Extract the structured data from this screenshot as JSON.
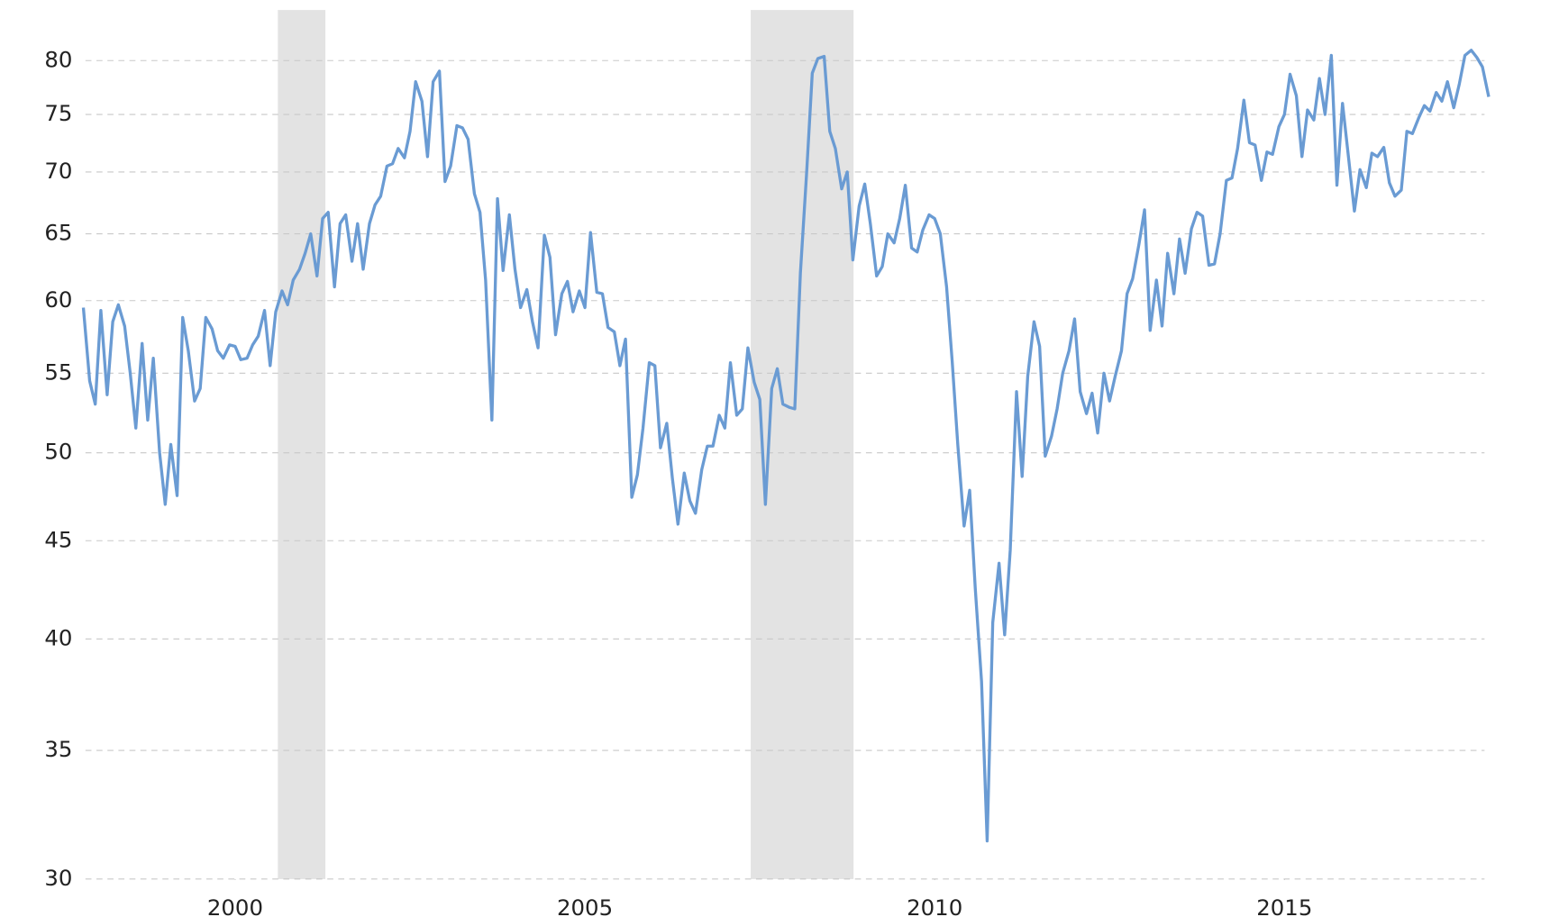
{
  "chart_data": {
    "type": "line",
    "y_scale": "log",
    "grid": true,
    "xlim": [
      1997.86,
      2017.86
    ],
    "xticks": [
      2000,
      2005,
      2010,
      2015
    ],
    "ylim": [
      30,
      85
    ],
    "yticks": [
      30,
      35,
      40,
      45,
      50,
      55,
      60,
      65,
      70,
      75,
      80
    ],
    "shaded_regions": [
      [
        2000.61,
        2001.29
      ],
      [
        2007.37,
        2008.84
      ]
    ],
    "shade_color": "#e3e3e3",
    "x": [
      1997.83,
      1997.92,
      1998.0,
      1998.08,
      1998.17,
      1998.25,
      1998.33,
      1998.42,
      1998.5,
      1998.58,
      1998.67,
      1998.75,
      1998.83,
      1998.92,
      1999.0,
      1999.08,
      1999.17,
      1999.25,
      1999.33,
      1999.42,
      1999.5,
      1999.58,
      1999.67,
      1999.75,
      1999.83,
      1999.92,
      2000.0,
      2000.08,
      2000.17,
      2000.25,
      2000.33,
      2000.42,
      2000.5,
      2000.58,
      2000.67,
      2000.75,
      2000.83,
      2000.92,
      2001.0,
      2001.08,
      2001.17,
      2001.25,
      2001.33,
      2001.42,
      2001.5,
      2001.58,
      2001.67,
      2001.75,
      2001.83,
      2001.92,
      2002.0,
      2002.08,
      2002.17,
      2002.25,
      2002.33,
      2002.42,
      2002.5,
      2002.58,
      2002.67,
      2002.75,
      2002.83,
      2002.92,
      2003.0,
      2003.08,
      2003.17,
      2003.25,
      2003.33,
      2003.42,
      2003.5,
      2003.58,
      2003.67,
      2003.75,
      2003.83,
      2003.92,
      2004.0,
      2004.08,
      2004.17,
      2004.25,
      2004.33,
      2004.42,
      2004.5,
      2004.58,
      2004.67,
      2004.75,
      2004.83,
      2004.92,
      2005.0,
      2005.08,
      2005.17,
      2005.25,
      2005.33,
      2005.42,
      2005.5,
      2005.58,
      2005.67,
      2005.75,
      2005.83,
      2005.92,
      2006.0,
      2006.08,
      2006.17,
      2006.25,
      2006.33,
      2006.42,
      2006.5,
      2006.58,
      2006.67,
      2006.75,
      2006.83,
      2006.92,
      2007.0,
      2007.08,
      2007.17,
      2007.25,
      2007.33,
      2007.42,
      2007.5,
      2007.58,
      2007.67,
      2007.75,
      2007.83,
      2007.92,
      2008.0,
      2008.08,
      2008.17,
      2008.25,
      2008.33,
      2008.42,
      2008.5,
      2008.58,
      2008.67,
      2008.75,
      2008.83,
      2008.92,
      2009.0,
      2009.08,
      2009.17,
      2009.25,
      2009.33,
      2009.42,
      2009.5,
      2009.58,
      2009.67,
      2009.75,
      2009.83,
      2009.92,
      2010.0,
      2010.08,
      2010.17,
      2010.25,
      2010.33,
      2010.42,
      2010.5,
      2010.58,
      2010.67,
      2010.75,
      2010.83,
      2010.92,
      2011.0,
      2011.08,
      2011.17,
      2011.25,
      2011.33,
      2011.42,
      2011.5,
      2011.58,
      2011.67,
      2011.75,
      2011.83,
      2011.92,
      2012.0,
      2012.08,
      2012.17,
      2012.25,
      2012.33,
      2012.42,
      2012.5,
      2012.58,
      2012.67,
      2012.75,
      2012.83,
      2012.92,
      2013.0,
      2013.08,
      2013.17,
      2013.25,
      2013.33,
      2013.42,
      2013.5,
      2013.58,
      2013.67,
      2013.75,
      2013.83,
      2013.92,
      2014.0,
      2014.08,
      2014.17,
      2014.25,
      2014.33,
      2014.42,
      2014.5,
      2014.58,
      2014.67,
      2014.75,
      2014.83,
      2014.92,
      2015.0,
      2015.08,
      2015.17,
      2015.25,
      2015.33,
      2015.42,
      2015.5,
      2015.58,
      2015.67,
      2015.75,
      2015.83,
      2015.92,
      2016.0,
      2016.08,
      2016.17,
      2016.25,
      2016.33,
      2016.42,
      2016.5,
      2016.58,
      2016.67,
      2016.75,
      2016.83,
      2016.92,
      2017.0,
      2017.08,
      2017.17,
      2017.25,
      2017.33,
      2017.42,
      2017.5,
      2017.58,
      2017.67,
      2017.75,
      2017.83,
      2017.92
    ],
    "series": [
      {
        "color": "#6a9bd3",
        "values": [
          59.5,
          54.5,
          53.0,
          59.3,
          53.6,
          58.5,
          59.7,
          58.2,
          55,
          51.5,
          57,
          52,
          56,
          50,
          47,
          50.5,
          47.5,
          58.8,
          56.5,
          53.2,
          54,
          58.8,
          58,
          56.5,
          56,
          56.9,
          56.8,
          55.9,
          56,
          56.9,
          57.5,
          59.3,
          55.5,
          59.2,
          60.7,
          59.7,
          61.5,
          62.3,
          63.5,
          65.0,
          61.8,
          66.2,
          66.7,
          61.0,
          65.8,
          66.5,
          62.9,
          65.8,
          62.3,
          65.8,
          67.3,
          68.0,
          70.5,
          70.7,
          72.0,
          71.2,
          73.5,
          78.0,
          76.2,
          71.3,
          78.0,
          79.0,
          69.2,
          70.5,
          74.0,
          73.8,
          72.8,
          68.2,
          66.7,
          61.5,
          52.0,
          67.8,
          62.2,
          66.5,
          62.3,
          59.5,
          60.8,
          58.5,
          56.7,
          64.9,
          63.2,
          57.6,
          60.5,
          61.4,
          59.2,
          60.7,
          59.5,
          65.1,
          60.6,
          60.5,
          58.1,
          57.8,
          55.5,
          57.3,
          47.4,
          48.7,
          51.5,
          55.7,
          55.5,
          50.3,
          51.8,
          48.5,
          45.9,
          48.8,
          47.2,
          46.5,
          49.0,
          50.4,
          50.4,
          52.3,
          51.5,
          55.7,
          52.3,
          52.7,
          56.7,
          54.4,
          53.3,
          47.0,
          54.0,
          55.3,
          53.0,
          52.8,
          52.7,
          62.0,
          70.0,
          78.8,
          80.2,
          80.4,
          73.5,
          72.0,
          68.6,
          70.0,
          63.0,
          67.2,
          69.0,
          65.8,
          61.8,
          62.5,
          65.0,
          64.3,
          66.2,
          68.9,
          63.9,
          63.6,
          65.3,
          66.5,
          66.2,
          65.0,
          61.0,
          55.8,
          50.5,
          45.8,
          47.8,
          42.5,
          38.0,
          31.4,
          40.8,
          43.8,
          40.2,
          44.5,
          53.8,
          48.6,
          54.8,
          58.5,
          56.8,
          49.8,
          51.0,
          52.7,
          55.0,
          56.5,
          58.7,
          53.8,
          52.4,
          53.7,
          51.2,
          55.0,
          53.2,
          54.8,
          56.5,
          60.5,
          61.6,
          64.2,
          66.9,
          57.9,
          61.5,
          58.2,
          63.5,
          60.5,
          64.6,
          62.0,
          65.4,
          66.7,
          66.4,
          62.6,
          62.7,
          65.0,
          69.3,
          69.5,
          72.0,
          76.3,
          72.5,
          72.3,
          69.3,
          71.7,
          71.5,
          73.9,
          75.0,
          78.7,
          76.7,
          71.3,
          75.4,
          74.5,
          78.3,
          75.0,
          80.5,
          68.9,
          76.0,
          71.0,
          66.8,
          70.2,
          68.7,
          71.6,
          71.3,
          72.1,
          69.1,
          68.0,
          68.5,
          73.5,
          73.3,
          74.7,
          75.8,
          75.3,
          77.0,
          76.2,
          78.0,
          75.6,
          77.8,
          80.5,
          81.0,
          80.3,
          79.4,
          76.6
        ]
      }
    ]
  }
}
